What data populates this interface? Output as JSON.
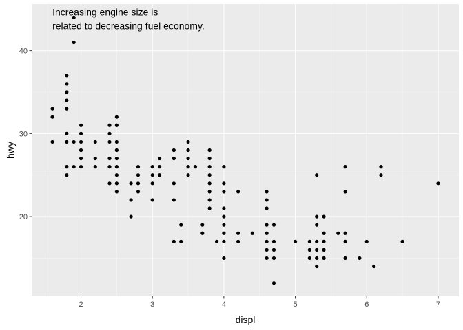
{
  "chart_data": {
    "type": "scatter",
    "title": "",
    "xlabel": "displ",
    "ylabel": "hwy",
    "xlim": [
      1.31,
      7.29
    ],
    "ylim": [
      10.4,
      45.6
    ],
    "x_ticks": [
      2,
      3,
      4,
      5,
      6,
      7
    ],
    "y_ticks": [
      20,
      30,
      40
    ],
    "x_tick_labels": [
      "2",
      "3",
      "4",
      "5",
      "6",
      "7"
    ],
    "y_tick_labels": [
      "20",
      "30",
      "40"
    ],
    "grid": true,
    "annotation": {
      "lines": [
        "Increasing engine size is",
        "related to decreasing fuel economy."
      ],
      "x": 1.6,
      "y": 44
    },
    "colors": {
      "panel": "#ebebeb",
      "grid_major": "#ffffff",
      "grid_minor": "#f5f5f5",
      "point": "#000000"
    },
    "points": [
      [
        1.6,
        33
      ],
      [
        1.6,
        32
      ],
      [
        1.6,
        29
      ],
      [
        1.8,
        37
      ],
      [
        1.8,
        36
      ],
      [
        1.8,
        35
      ],
      [
        1.8,
        34
      ],
      [
        1.8,
        33
      ],
      [
        1.8,
        30
      ],
      [
        1.8,
        29
      ],
      [
        1.8,
        26
      ],
      [
        1.8,
        25
      ],
      [
        1.9,
        44
      ],
      [
        1.9,
        41
      ],
      [
        1.9,
        29
      ],
      [
        1.9,
        26
      ],
      [
        2.0,
        31
      ],
      [
        2.0,
        30
      ],
      [
        2.0,
        29
      ],
      [
        2.0,
        28
      ],
      [
        2.0,
        27
      ],
      [
        2.0,
        26
      ],
      [
        2.2,
        29
      ],
      [
        2.2,
        27
      ],
      [
        2.2,
        26
      ],
      [
        2.4,
        31
      ],
      [
        2.4,
        30
      ],
      [
        2.4,
        29
      ],
      [
        2.4,
        27
      ],
      [
        2.4,
        26
      ],
      [
        2.4,
        24
      ],
      [
        2.5,
        32
      ],
      [
        2.5,
        31
      ],
      [
        2.5,
        29
      ],
      [
        2.5,
        28
      ],
      [
        2.5,
        27
      ],
      [
        2.5,
        26
      ],
      [
        2.5,
        25
      ],
      [
        2.5,
        24
      ],
      [
        2.5,
        23
      ],
      [
        2.7,
        24
      ],
      [
        2.7,
        22
      ],
      [
        2.7,
        20
      ],
      [
        2.8,
        26
      ],
      [
        2.8,
        25
      ],
      [
        2.8,
        24
      ],
      [
        2.8,
        23
      ],
      [
        3.0,
        26
      ],
      [
        3.0,
        25
      ],
      [
        3.0,
        24
      ],
      [
        3.0,
        22
      ],
      [
        3.1,
        27
      ],
      [
        3.1,
        26
      ],
      [
        3.1,
        25
      ],
      [
        3.3,
        28
      ],
      [
        3.3,
        27
      ],
      [
        3.3,
        24
      ],
      [
        3.3,
        22
      ],
      [
        3.3,
        17
      ],
      [
        3.4,
        19
      ],
      [
        3.4,
        17
      ],
      [
        3.5,
        29
      ],
      [
        3.5,
        28
      ],
      [
        3.5,
        27
      ],
      [
        3.5,
        26
      ],
      [
        3.5,
        25
      ],
      [
        3.6,
        26
      ],
      [
        3.7,
        19
      ],
      [
        3.7,
        18
      ],
      [
        3.8,
        28
      ],
      [
        3.8,
        27
      ],
      [
        3.8,
        26
      ],
      [
        3.8,
        25
      ],
      [
        3.8,
        24
      ],
      [
        3.8,
        23
      ],
      [
        3.8,
        22
      ],
      [
        3.8,
        21
      ],
      [
        3.9,
        17
      ],
      [
        4.0,
        26
      ],
      [
        4.0,
        24
      ],
      [
        4.0,
        23
      ],
      [
        4.0,
        21
      ],
      [
        4.0,
        20
      ],
      [
        4.0,
        19
      ],
      [
        4.0,
        18
      ],
      [
        4.0,
        17
      ],
      [
        4.0,
        15
      ],
      [
        4.2,
        23
      ],
      [
        4.2,
        18
      ],
      [
        4.2,
        17
      ],
      [
        4.4,
        18
      ],
      [
        4.6,
        23
      ],
      [
        4.6,
        22
      ],
      [
        4.6,
        21
      ],
      [
        4.6,
        19
      ],
      [
        4.6,
        18
      ],
      [
        4.6,
        17
      ],
      [
        4.6,
        16
      ],
      [
        4.6,
        15
      ],
      [
        4.7,
        19
      ],
      [
        4.7,
        17
      ],
      [
        4.7,
        16
      ],
      [
        4.7,
        15
      ],
      [
        4.7,
        12
      ],
      [
        5.0,
        17
      ],
      [
        5.2,
        17
      ],
      [
        5.2,
        16
      ],
      [
        5.2,
        15
      ],
      [
        5.3,
        25
      ],
      [
        5.3,
        20
      ],
      [
        5.3,
        19
      ],
      [
        5.3,
        17
      ],
      [
        5.3,
        16
      ],
      [
        5.3,
        15
      ],
      [
        5.3,
        14
      ],
      [
        5.4,
        20
      ],
      [
        5.4,
        18
      ],
      [
        5.4,
        17
      ],
      [
        5.4,
        16
      ],
      [
        5.4,
        15
      ],
      [
        5.6,
        18
      ],
      [
        5.7,
        26
      ],
      [
        5.7,
        23
      ],
      [
        5.7,
        18
      ],
      [
        5.7,
        17
      ],
      [
        5.7,
        15
      ],
      [
        5.9,
        15
      ],
      [
        6.0,
        17
      ],
      [
        6.1,
        14
      ],
      [
        6.2,
        26
      ],
      [
        6.2,
        25
      ],
      [
        6.5,
        17
      ],
      [
        7.0,
        24
      ]
    ]
  }
}
